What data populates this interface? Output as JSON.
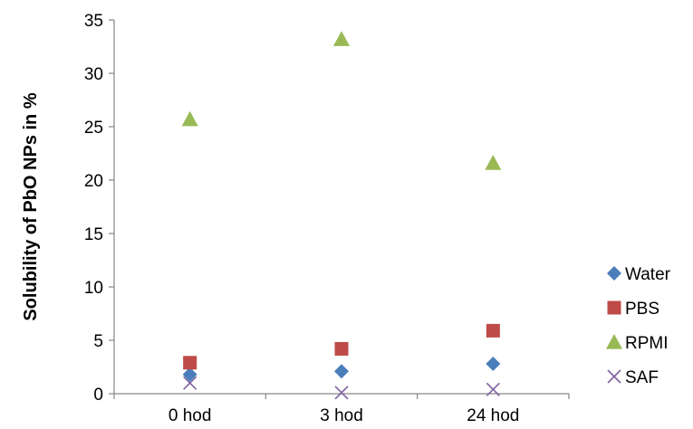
{
  "chart_data": {
    "type": "scatter",
    "title": "",
    "ylabel": "Solubility of PbO NPs in %",
    "xlabel": "",
    "categories": [
      "0 hod",
      "3 hod",
      "24 hod"
    ],
    "ylim": [
      0,
      35
    ],
    "yticks": [
      0,
      5,
      10,
      15,
      20,
      25,
      30,
      35
    ],
    "grid": false,
    "legend_position": "right",
    "series": [
      {
        "name": "Water",
        "marker": "diamond",
        "color": "#4a7ebb",
        "values": [
          1.8,
          2.1,
          2.8
        ]
      },
      {
        "name": "PBS",
        "marker": "square",
        "color": "#be4b48",
        "values": [
          2.9,
          4.2,
          5.9
        ]
      },
      {
        "name": "RPMI",
        "marker": "triangle",
        "color": "#98b954",
        "values": [
          25.7,
          33.2,
          21.6
        ]
      },
      {
        "name": "SAF",
        "marker": "x",
        "color": "#7d60a0",
        "values": [
          1.0,
          0.1,
          0.4
        ]
      }
    ]
  }
}
